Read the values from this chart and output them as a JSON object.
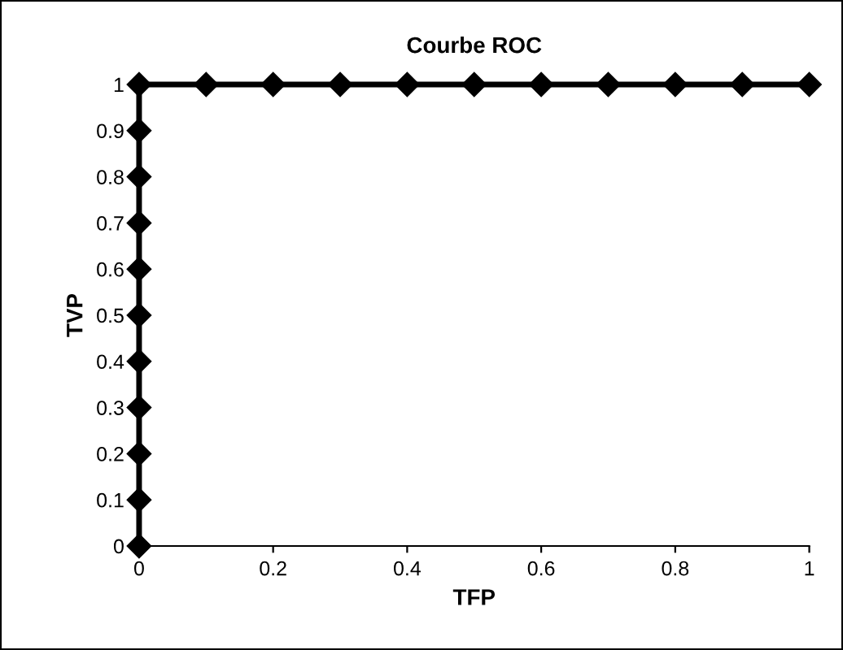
{
  "chart_data": {
    "type": "line",
    "title": "Courbe ROC",
    "xlabel": "TFP",
    "ylabel": "TVP",
    "series": [
      {
        "color": "#000000",
        "x": [
          0,
          0,
          0,
          0,
          0,
          0,
          0,
          0,
          0,
          0,
          0,
          0.1,
          0.2,
          0.3,
          0.4,
          0.5,
          0.6,
          0.7,
          0.8,
          0.9,
          1
        ],
        "values": [
          0,
          0.1,
          0.2,
          0.3,
          0.4,
          0.5,
          0.6,
          0.7,
          0.8,
          0.9,
          1,
          1,
          1,
          1,
          1,
          1,
          1,
          1,
          1,
          1,
          1
        ]
      }
    ],
    "xlim": [
      0,
      1
    ],
    "xticks": [
      0,
      0.2,
      0.4,
      0.6,
      0.8,
      1
    ],
    "ylim": [
      0,
      1
    ],
    "yticks": [
      0,
      0.1,
      0.2,
      0.3,
      0.4,
      0.5,
      0.6,
      0.7,
      0.8,
      0.9,
      1
    ],
    "marker": "diamond",
    "line_style": "solid",
    "grid": false
  }
}
